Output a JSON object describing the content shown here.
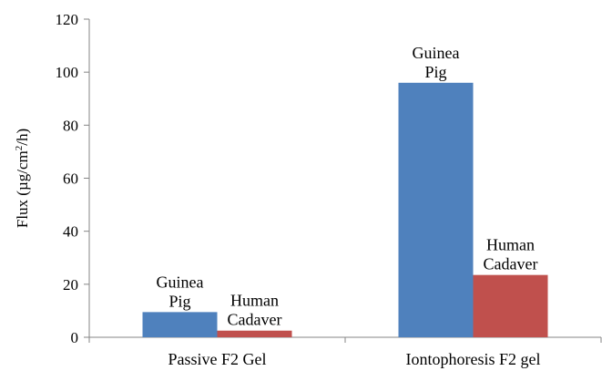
{
  "chart_data": {
    "type": "bar",
    "categories": [
      "Passive F2 Gel",
      "Iontophoresis F2 gel"
    ],
    "series": [
      {
        "name": "Guinea Pig",
        "color": "#4f81bd",
        "values": [
          9.5,
          96
        ],
        "data_labels": [
          [
            "Guinea",
            "Pig"
          ],
          [
            "Guinea",
            "Pig"
          ]
        ]
      },
      {
        "name": "Human Cadaver",
        "color": "#c0504d",
        "values": [
          2.5,
          23.5
        ],
        "data_labels": [
          [
            "Human",
            "Cadaver"
          ],
          [
            "Human",
            "Cadaver"
          ]
        ]
      }
    ],
    "title": "",
    "xlabel": "",
    "ylabel": "Flux (µg/cm²/h)",
    "ylim": [
      0,
      120
    ],
    "yticks": [
      0,
      20,
      40,
      60,
      80,
      100,
      120
    ],
    "grid": false,
    "legend": "none"
  }
}
